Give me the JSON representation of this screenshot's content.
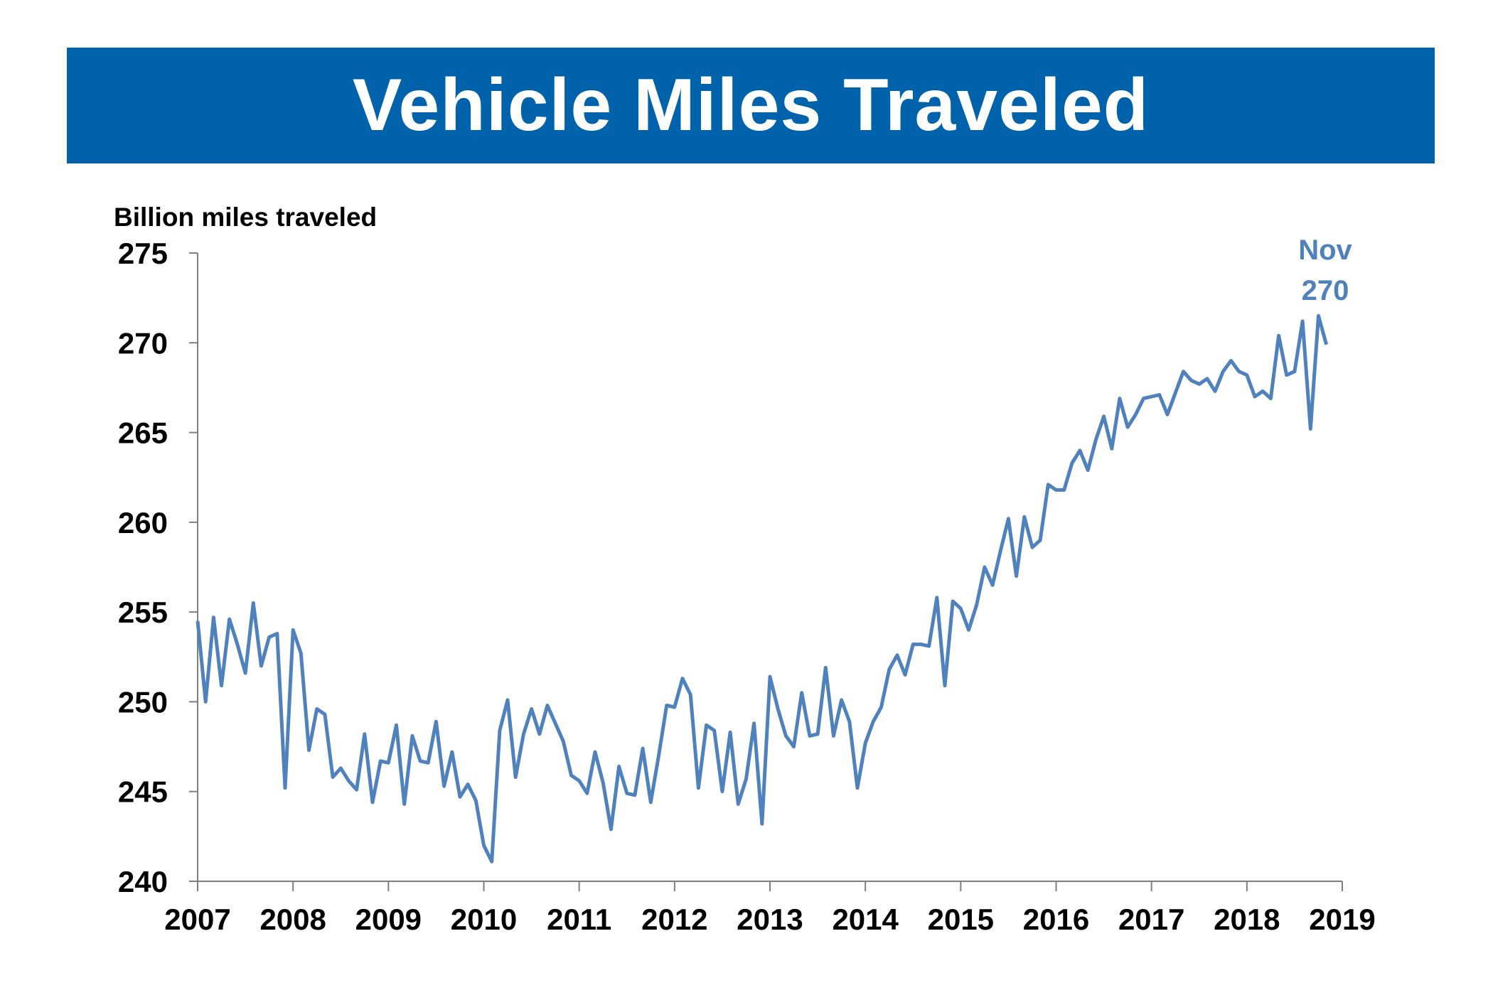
{
  "title": "Vehicle Miles Traveled",
  "colors": {
    "banner": "#0062aa",
    "line": "#4f81bd",
    "axis": "#7f7f7f"
  },
  "chart_data": {
    "type": "line",
    "title": "Vehicle Miles Traveled",
    "ylabel": "Billion miles traveled",
    "xlabel": "",
    "ylim": [
      240,
      275
    ],
    "xlim": [
      2007,
      2019
    ],
    "y_ticks": [
      240,
      245,
      250,
      255,
      260,
      265,
      270,
      275
    ],
    "x_ticks": [
      2007,
      2008,
      2009,
      2010,
      2011,
      2012,
      2013,
      2014,
      2015,
      2016,
      2017,
      2018,
      2019
    ],
    "grid": false,
    "legend": "none",
    "annotation": {
      "line1": "Nov",
      "line2": "270"
    },
    "series": [
      {
        "start": "2007-01",
        "frequency": "monthly",
        "values": [
          254.5,
          250.0,
          254.7,
          250.9,
          254.6,
          253.2,
          251.6,
          255.5,
          252.0,
          253.6,
          253.8,
          245.2,
          254.0,
          252.7,
          247.3,
          249.6,
          249.3,
          245.8,
          246.3,
          245.6,
          245.1,
          248.2,
          244.4,
          246.7,
          246.6,
          248.7,
          244.3,
          248.1,
          246.7,
          246.6,
          248.9,
          245.3,
          247.2,
          244.7,
          245.4,
          244.5,
          242.0,
          241.1,
          248.4,
          250.1,
          245.8,
          248.2,
          249.6,
          248.2,
          249.8,
          248.8,
          247.8,
          245.9,
          245.6,
          244.9,
          247.2,
          245.5,
          242.9,
          246.4,
          244.9,
          244.8,
          247.4,
          244.4,
          247.0,
          249.8,
          249.7,
          251.3,
          250.4,
          245.2,
          248.7,
          248.4,
          245.0,
          248.3,
          244.3,
          245.7,
          248.8,
          243.2,
          251.4,
          249.6,
          248.1,
          247.5,
          250.5,
          248.1,
          248.2,
          251.9,
          248.1,
          250.1,
          248.9,
          245.2,
          247.7,
          248.9,
          249.7,
          251.8,
          252.6,
          251.5,
          253.2,
          253.2,
          253.1,
          255.8,
          250.9,
          255.6,
          255.2,
          254.0,
          255.4,
          257.5,
          256.5,
          258.4,
          260.2,
          257.0,
          260.3,
          258.6,
          259.0,
          262.1,
          261.8,
          261.8,
          263.3,
          264.0,
          262.9,
          264.6,
          265.9,
          264.1,
          266.9,
          265.3,
          266.0,
          266.9,
          267.0,
          267.1,
          266.0,
          267.2,
          268.4,
          267.9,
          267.7,
          268.0,
          267.3,
          268.4,
          269.0,
          268.4,
          268.2,
          267.0,
          267.3,
          266.9,
          270.4,
          268.2,
          268.4,
          271.2,
          265.2,
          271.5,
          269.9
        ]
      }
    ]
  }
}
